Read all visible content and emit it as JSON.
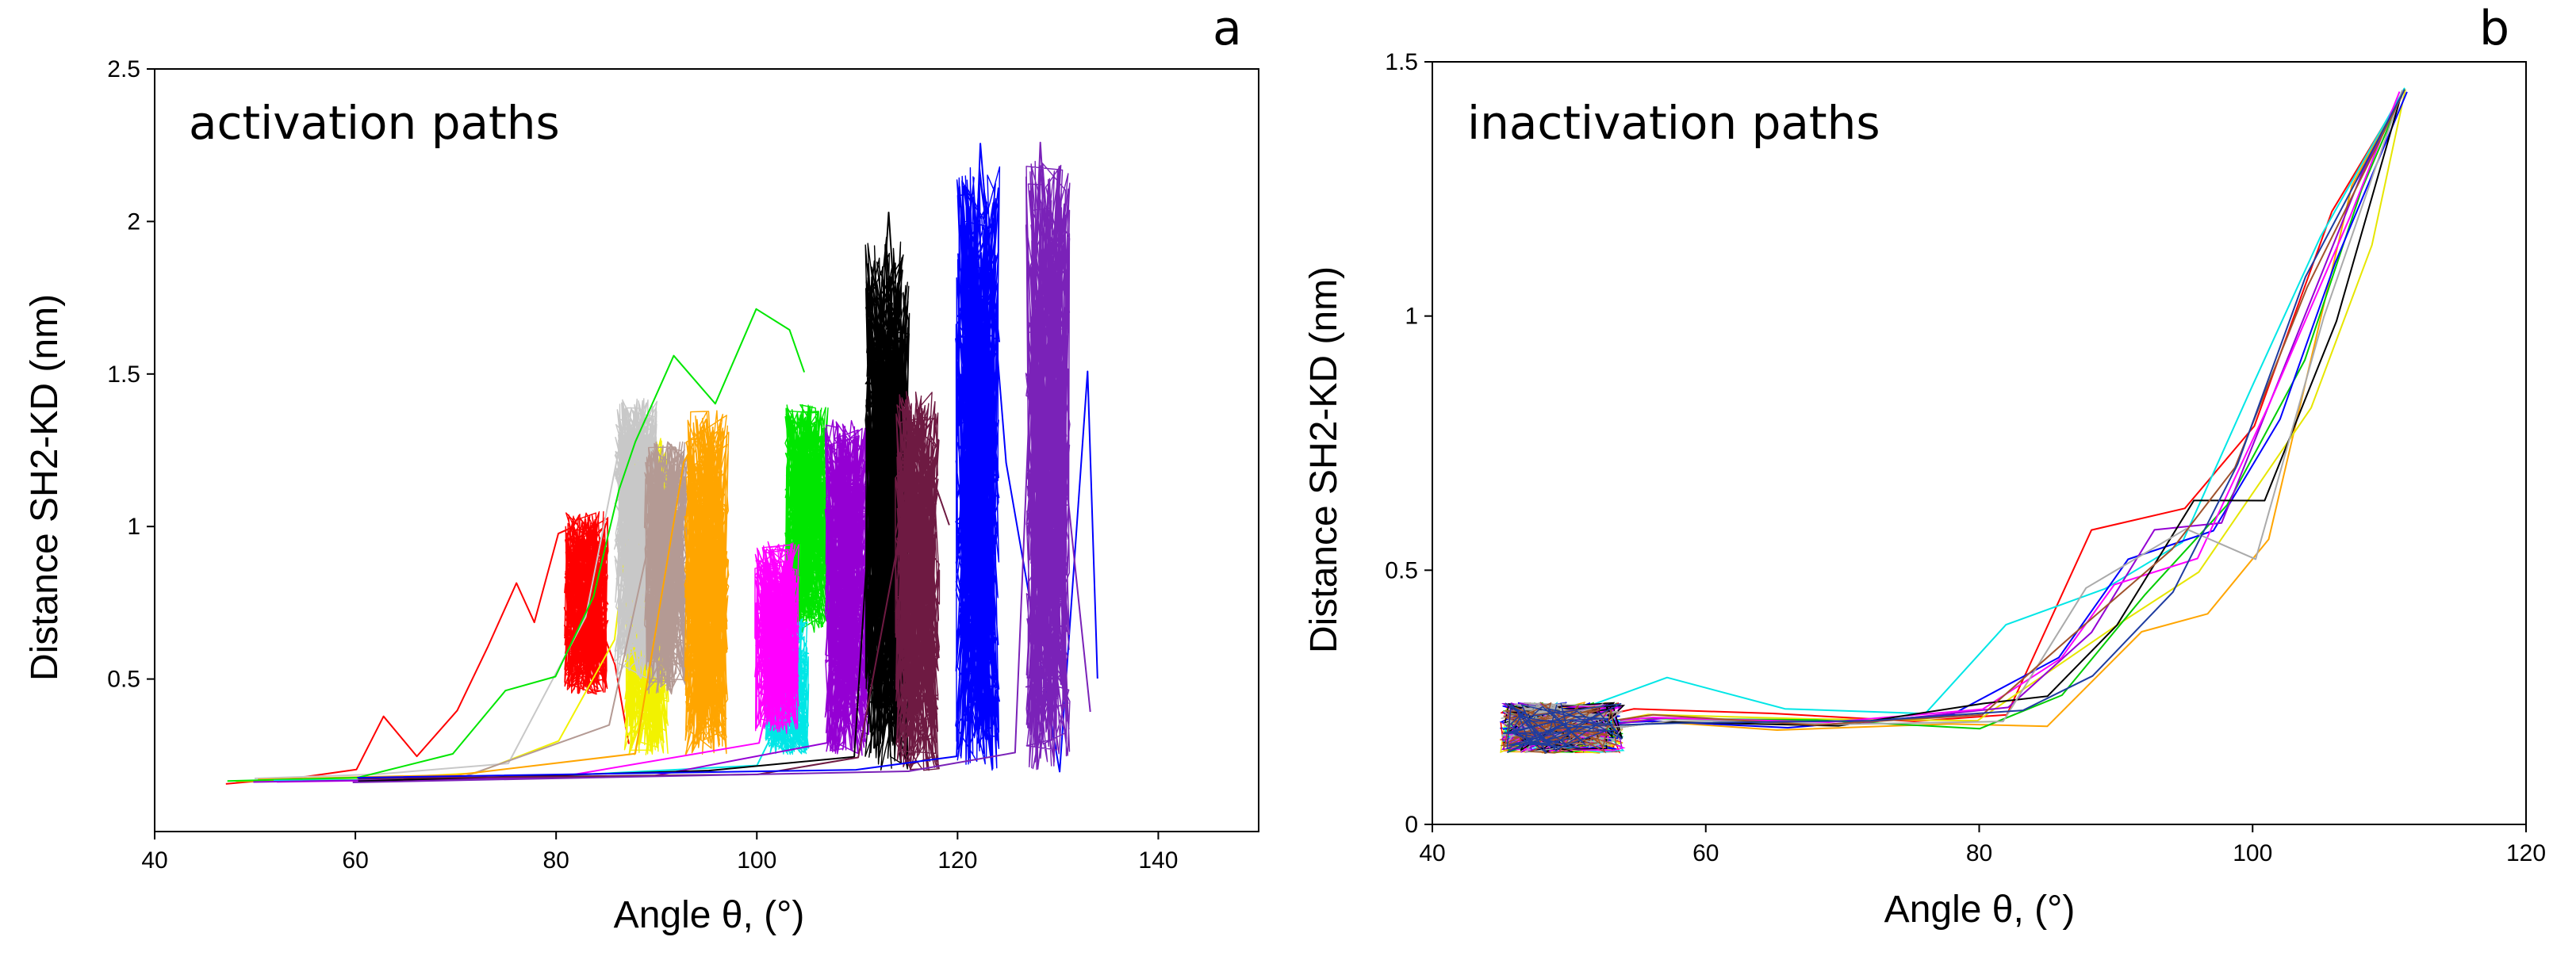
{
  "chart_data": [
    {
      "panel_id": "a",
      "type": "line",
      "title": "activation paths",
      "xlabel": "Angle  θ, (°)",
      "ylabel": "Distance SH2-KD (nm)",
      "xlim": [
        40,
        150
      ],
      "ylim": [
        0,
        2.5
      ],
      "xticks": [
        40,
        60,
        80,
        100,
        120,
        140
      ],
      "yticks": [
        0.5,
        1,
        1.5,
        2,
        2.5
      ],
      "grid": false,
      "legend": "none",
      "series": [
        {
          "name": "red",
          "color": "#ff0000",
          "path": [
            [
              47,
              0.16
            ],
            [
              55,
              0.17
            ],
            [
              60,
              0.2
            ],
            [
              63,
              0.37
            ],
            [
              66,
              0.24
            ],
            [
              70,
              0.4
            ],
            [
              73,
              0.61
            ],
            [
              76,
              0.82
            ],
            [
              78,
              0.68
            ],
            [
              80,
              0.97
            ],
            [
              82,
              1.0
            ],
            [
              84,
              0.7
            ],
            [
              86,
              0.55
            ],
            [
              87,
              0.28
            ]
          ],
          "cluster": {
            "x": 83,
            "y_min": 0.45,
            "y_max": 1.05
          }
        },
        {
          "name": "yellow",
          "color": "#f2f200",
          "path": [
            [
              48,
              0.16
            ],
            [
              60,
              0.17
            ],
            [
              72,
              0.2
            ],
            [
              80,
              0.3
            ],
            [
              86,
              0.62
            ],
            [
              88,
              1.25
            ],
            [
              90,
              1.28
            ],
            [
              92,
              0.98
            ]
          ],
          "cluster": {
            "x": 89,
            "y_min": 0.25,
            "y_max": 1.3
          }
        },
        {
          "name": "silver",
          "color": "#c8c8c8",
          "path": [
            [
              50,
              0.17
            ],
            [
              62,
              0.18
            ],
            [
              75,
              0.22
            ],
            [
              83,
              0.7
            ],
            [
              87,
              1.38
            ],
            [
              89,
              1.12
            ]
          ],
          "cluster": {
            "x": 88,
            "y_min": 0.5,
            "y_max": 1.42
          }
        },
        {
          "name": "rosybrown",
          "color": "#b49a94",
          "path": [
            [
              50,
              0.17
            ],
            [
              70,
              0.18
            ],
            [
              85,
              0.35
            ],
            [
              90,
              1.1
            ],
            [
              92,
              0.7
            ]
          ],
          "cluster": {
            "x": 91,
            "y_min": 0.45,
            "y_max": 1.28
          }
        },
        {
          "name": "orange",
          "color": "#ffa500",
          "path": [
            [
              50,
              0.17
            ],
            [
              70,
              0.18
            ],
            [
              88,
              0.25
            ],
            [
              93,
              1.22
            ],
            [
              95,
              1.36
            ],
            [
              96,
              0.6
            ]
          ],
          "cluster": {
            "x": 95,
            "y_min": 0.25,
            "y_max": 1.38
          }
        },
        {
          "name": "green",
          "color": "#00e600",
          "path": [
            [
              47,
              0.16
            ],
            [
              60,
              0.17
            ],
            [
              70,
              0.25
            ],
            [
              75,
              0.46
            ],
            [
              80,
              0.5
            ],
            [
              84,
              0.78
            ],
            [
              86,
              1.12
            ],
            [
              88,
              1.27
            ],
            [
              92,
              1.55
            ],
            [
              96,
              1.4
            ],
            [
              100,
              1.72
            ],
            [
              103,
              1.64
            ],
            [
              105,
              1.5
            ]
          ],
          "cluster": {
            "x": 105,
            "y_min": 0.65,
            "y_max": 1.4
          }
        },
        {
          "name": "cyan",
          "color": "#00e6e6",
          "path": [
            [
              52,
              0.17
            ],
            [
              75,
              0.18
            ],
            [
              100,
              0.22
            ],
            [
              103,
              0.4
            ]
          ],
          "cluster": {
            "x": 103,
            "y_min": 0.25,
            "y_max": 0.7
          }
        },
        {
          "name": "magenta",
          "color": "#ff00ff",
          "path": [
            [
              52,
              0.17
            ],
            [
              80,
              0.18
            ],
            [
              100,
              0.3
            ],
            [
              102,
              0.5
            ]
          ],
          "cluster": {
            "x": 102,
            "y_min": 0.32,
            "y_max": 0.95
          }
        },
        {
          "name": "purple",
          "color": "#9400d3",
          "path": [
            [
              50,
              0.17
            ],
            [
              90,
              0.19
            ],
            [
              107,
              0.3
            ],
            [
              108,
              1.3
            ]
          ],
          "cluster": {
            "x": 109,
            "y_min": 0.25,
            "y_max": 1.35
          }
        },
        {
          "name": "black",
          "color": "#000000",
          "path": [
            [
              60,
              0.17
            ],
            [
              95,
              0.19
            ],
            [
              110,
              0.25
            ],
            [
              113,
              2.02
            ],
            [
              115,
              1.2
            ]
          ],
          "cluster": {
            "x": 113,
            "y_min": 0.2,
            "y_max": 1.95
          }
        },
        {
          "name": "maroon",
          "color": "#6e1a42",
          "path": [
            [
              60,
              0.17
            ],
            [
              100,
              0.19
            ],
            [
              110,
              0.25
            ],
            [
              116,
              1.3
            ],
            [
              119,
              1.0
            ]
          ],
          "cluster": {
            "x": 116,
            "y_min": 0.2,
            "y_max": 1.45
          }
        },
        {
          "name": "blue",
          "color": "#0000ff",
          "path": [
            [
              60,
              0.17
            ],
            [
              110,
              0.2
            ],
            [
              120,
              0.25
            ],
            [
              122,
              2.25
            ],
            [
              125,
              1.2
            ],
            [
              130,
              0.2
            ],
            [
              133,
              1.5
            ],
            [
              134,
              0.5
            ]
          ],
          "cluster": {
            "x": 122,
            "y_min": 0.2,
            "y_max": 2.2
          }
        },
        {
          "name": "violet",
          "color": "#7a22b8",
          "path": [
            [
              60,
              0.17
            ],
            [
              115,
              0.2
            ],
            [
              126,
              0.25
            ],
            [
              128,
              2.25
            ],
            [
              130,
              1.5
            ],
            [
              133,
              0.4
            ]
          ],
          "cluster": {
            "x": 129,
            "y_min": 0.2,
            "y_max": 2.2
          }
        }
      ]
    },
    {
      "panel_id": "b",
      "type": "line",
      "title": "inactivation paths",
      "xlabel": "Angle θ, (°)",
      "ylabel": "Distance SH2-KD (nm)",
      "xlim": [
        40,
        120
      ],
      "ylim": [
        0,
        1.5
      ],
      "xticks": [
        40,
        60,
        80,
        100,
        120
      ],
      "yticks": [
        0,
        0.5,
        1,
        1.5
      ],
      "grid": false,
      "legend": "none",
      "start_cluster": {
        "x_min": 45,
        "x_max": 54,
        "y_min": 0.14,
        "y_max": 0.24
      },
      "endpoint": [
        111,
        1.44
      ],
      "series": [
        {
          "name": "red",
          "color": "#ff0000",
          "path": [
            [
              45,
              0.18
            ],
            [
              55,
              0.22
            ],
            [
              65,
              0.21
            ],
            [
              75,
              0.2
            ],
            [
              82,
              0.22
            ],
            [
              88,
              0.58
            ],
            [
              95,
              0.62
            ],
            [
              100,
              0.78
            ],
            [
              106,
              1.2
            ],
            [
              111,
              1.44
            ]
          ]
        },
        {
          "name": "orange",
          "color": "#ffa500",
          "path": [
            [
              45,
              0.17
            ],
            [
              55,
              0.2
            ],
            [
              65,
              0.19
            ],
            [
              78,
              0.2
            ],
            [
              85,
              0.19
            ],
            [
              92,
              0.38
            ],
            [
              97,
              0.42
            ],
            [
              101,
              0.57
            ],
            [
              107,
              1.25
            ],
            [
              111,
              1.44
            ]
          ]
        },
        {
          "name": "yellow",
          "color": "#e6e600",
          "path": [
            [
              46,
              0.17
            ],
            [
              56,
              0.21
            ],
            [
              68,
              0.2
            ],
            [
              80,
              0.21
            ],
            [
              90,
              0.4
            ],
            [
              96,
              0.5
            ],
            [
              104,
              0.82
            ],
            [
              109,
              1.14
            ],
            [
              111,
              1.44
            ]
          ]
        },
        {
          "name": "green",
          "color": "#00cc00",
          "path": [
            [
              45,
              0.18
            ],
            [
              55,
              0.2
            ],
            [
              68,
              0.2
            ],
            [
              80,
              0.19
            ],
            [
              86,
              0.25
            ],
            [
              92,
              0.46
            ],
            [
              98,
              0.62
            ],
            [
              104,
              0.92
            ],
            [
              108,
              1.25
            ],
            [
              111,
              1.44
            ]
          ]
        },
        {
          "name": "cyan",
          "color": "#00e6e6",
          "path": [
            [
              46,
              0.17
            ],
            [
              57,
              0.29
            ],
            [
              66,
              0.22
            ],
            [
              76,
              0.22
            ],
            [
              82,
              0.4
            ],
            [
              89,
              0.46
            ],
            [
              95,
              0.56
            ],
            [
              100,
              0.86
            ],
            [
              105,
              1.15
            ],
            [
              111,
              1.44
            ]
          ]
        },
        {
          "name": "blue",
          "color": "#0000ff",
          "path": [
            [
              45,
              0.18
            ],
            [
              56,
              0.21
            ],
            [
              66,
              0.2
            ],
            [
              78,
              0.21
            ],
            [
              86,
              0.32
            ],
            [
              91,
              0.52
            ],
            [
              97,
              0.57
            ],
            [
              102,
              0.8
            ],
            [
              106,
              1.1
            ],
            [
              111,
              1.44
            ]
          ]
        },
        {
          "name": "purple",
          "color": "#9400d3",
          "path": [
            [
              45,
              0.17
            ],
            [
              57,
              0.21
            ],
            [
              70,
              0.2
            ],
            [
              82,
              0.24
            ],
            [
              88,
              0.38
            ],
            [
              93,
              0.57
            ],
            [
              98,
              0.6
            ],
            [
              103,
              0.95
            ],
            [
              108,
              1.28
            ],
            [
              111,
              1.44
            ]
          ]
        },
        {
          "name": "magenta",
          "color": "#ff00ff",
          "path": [
            [
              46,
              0.18
            ],
            [
              56,
              0.22
            ],
            [
              69,
              0.21
            ],
            [
              80,
              0.22
            ],
            [
              86,
              0.33
            ],
            [
              90,
              0.48
            ],
            [
              96,
              0.52
            ],
            [
              101,
              0.82
            ],
            [
              107,
              1.2
            ],
            [
              111,
              1.44
            ]
          ]
        },
        {
          "name": "black",
          "color": "#000000",
          "path": [
            [
              45,
              0.17
            ],
            [
              57,
              0.2
            ],
            [
              70,
              0.2
            ],
            [
              80,
              0.23
            ],
            [
              85,
              0.25
            ],
            [
              90,
              0.4
            ],
            [
              96,
              0.63
            ],
            [
              101,
              0.63
            ],
            [
              106,
              0.99
            ],
            [
              111,
              1.44
            ]
          ]
        },
        {
          "name": "gray",
          "color": "#aaaaaa",
          "path": [
            [
              46,
              0.17
            ],
            [
              58,
              0.21
            ],
            [
              70,
              0.19
            ],
            [
              82,
              0.21
            ],
            [
              88,
              0.46
            ],
            [
              95,
              0.58
            ],
            [
              100,
              0.52
            ],
            [
              105,
              1.0
            ],
            [
              111,
              1.44
            ]
          ]
        },
        {
          "name": "brown",
          "color": "#a0522d",
          "path": [
            [
              45,
              0.18
            ],
            [
              56,
              0.21
            ],
            [
              68,
              0.2
            ],
            [
              80,
              0.21
            ],
            [
              87,
              0.38
            ],
            [
              94,
              0.55
            ],
            [
              99,
              0.7
            ],
            [
              104,
              1.05
            ],
            [
              111,
              1.44
            ]
          ]
        },
        {
          "name": "darkblue",
          "color": "#1e3ca0",
          "path": [
            [
              46,
              0.18
            ],
            [
              58,
              0.2
            ],
            [
              72,
              0.21
            ],
            [
              83,
              0.23
            ],
            [
              88,
              0.3
            ],
            [
              94,
              0.46
            ],
            [
              99,
              0.7
            ],
            [
              104,
              1.08
            ],
            [
              111,
              1.44
            ]
          ]
        }
      ]
    }
  ]
}
